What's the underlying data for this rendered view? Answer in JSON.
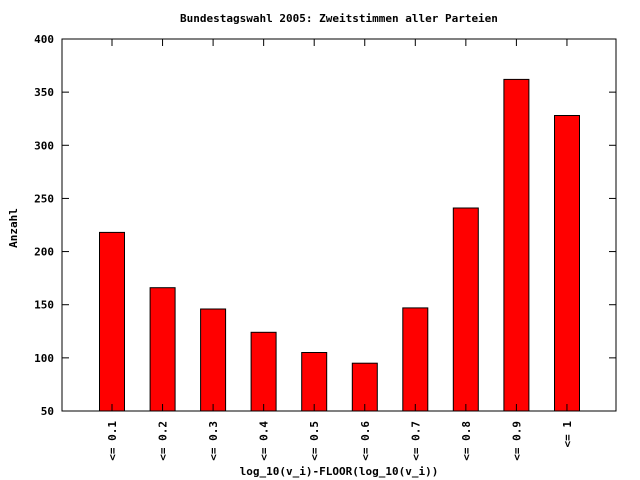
{
  "chart_data": {
    "type": "bar",
    "title": "Bundestagswahl 2005: Zweitstimmen aller Parteien",
    "xlabel": "log_10(v_i)-FLOOR(log_10(v_i))",
    "ylabel": "Anzahl",
    "categories": [
      "<= 0.1",
      "<= 0.2",
      "<= 0.3",
      "<= 0.4",
      "<= 0.5",
      "<= 0.6",
      "<= 0.7",
      "<= 0.8",
      "<= 0.9",
      "<= 1"
    ],
    "values": [
      218,
      166,
      146,
      124,
      105,
      95,
      147,
      241,
      362,
      328
    ],
    "ylim": [
      50,
      400
    ],
    "yticks": [
      "50",
      "100",
      "150",
      "200",
      "250",
      "300",
      "350",
      "400"
    ],
    "ytick_values": [
      50,
      100,
      150,
      200,
      250,
      300,
      350,
      400
    ],
    "bar_color": "#ff0000",
    "grid": false,
    "legend": "none"
  }
}
